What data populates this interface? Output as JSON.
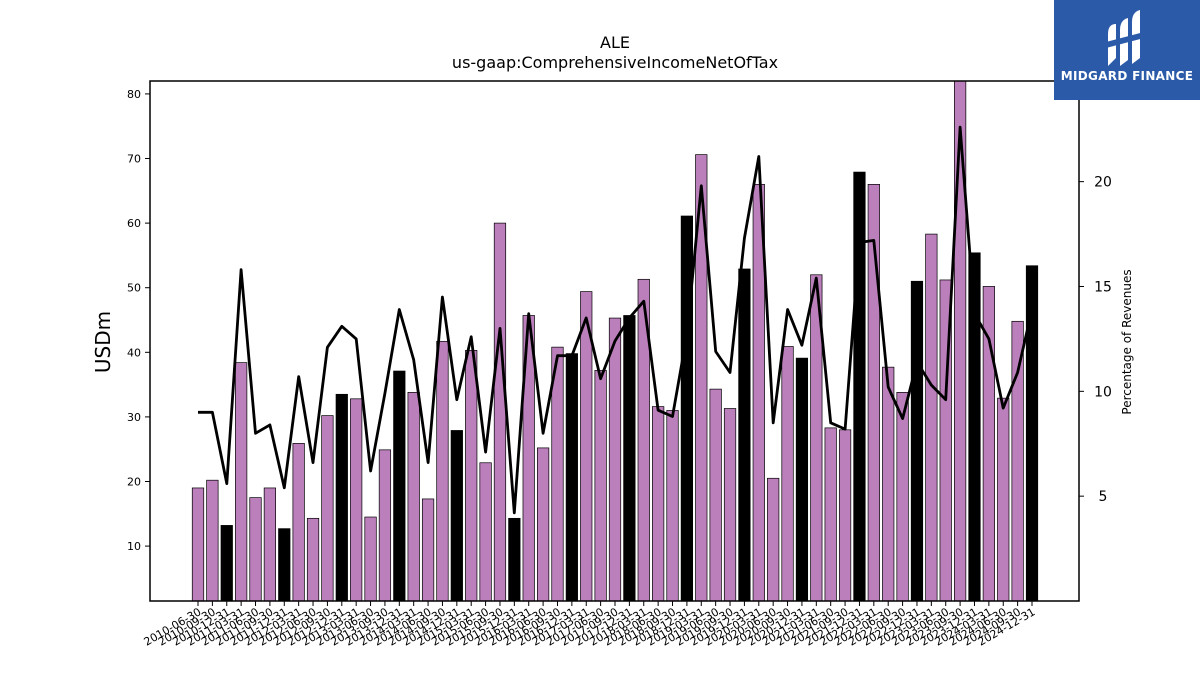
{
  "chart_data": {
    "type": "bar",
    "title": "ALE",
    "subtitle": "us-gaap:ComprehensiveIncomeNetOfTax",
    "ylabel": "USDm",
    "ylabel_right": "Percentage of Revenues",
    "ylim": [
      1.5,
      82
    ],
    "y2lim": [
      0,
      24.8
    ],
    "yticks": [
      10,
      20,
      30,
      40,
      50,
      60,
      70,
      80
    ],
    "y2ticks": [
      5,
      10,
      15,
      20
    ],
    "categories": [
      "2010-06-30",
      "2010-09-30",
      "2010-12-31",
      "2011-03-31",
      "2011-06-30",
      "2011-09-30",
      "2011-12-31",
      "2012-03-31",
      "2012-06-30",
      "2012-09-30",
      "2012-12-31",
      "2013-03-31",
      "2013-06-30",
      "2013-09-30",
      "2013-12-31",
      "2014-03-31",
      "2014-06-30",
      "2014-09-30",
      "2014-12-31",
      "2015-03-31",
      "2015-06-30",
      "2015-09-30",
      "2015-12-31",
      "2016-03-31",
      "2016-06-30",
      "2016-09-30",
      "2016-12-31",
      "2017-03-31",
      "2017-06-30",
      "2017-09-30",
      "2017-12-31",
      "2018-03-31",
      "2018-06-30",
      "2018-09-30",
      "2018-12-31",
      "2019-03-31",
      "2019-06-30",
      "2019-09-30",
      "2019-12-31",
      "2020-03-31",
      "2020-06-30",
      "2020-09-30",
      "2020-12-31",
      "2021-03-31",
      "2021-06-30",
      "2021-09-30",
      "2021-12-31",
      "2022-03-31",
      "2022-06-30",
      "2022-09-30",
      "2022-12-31",
      "2023-03-31",
      "2023-06-30",
      "2023-09-30",
      "2023-12-31",
      "2024-03-31",
      "2024-06-30",
      "2024-09-30",
      "2024-12-31"
    ],
    "tick_labels_shown": [
      "2010-06-30",
      "2010-09-30",
      "2010-12-31",
      "2011-03-31",
      "2011-06-30",
      "2011-09-30",
      "2011-12-31",
      "2012-03-31",
      "2012-06-30",
      "2012-09-30",
      "2012-12-31",
      "2013-03-31",
      "2013-06-30",
      "2013-09-30",
      "2013-12-31",
      "2014-03-31",
      "2014-06-30",
      "2014-09-30",
      "2014-12-31",
      "2015-03-31",
      "2015-06-30",
      "2015-09-30",
      "2015-12-31",
      "2016-03-31",
      "2016-06-30",
      "2016-09-30",
      "2016-12-31",
      "2017-03-31",
      "2017-06-30",
      "2017-09-30",
      "2017-12-31",
      "2018-03-31",
      "2018-06-30",
      "2018-09-30",
      "2018-12-31",
      "2019-03-31",
      "2019-06-30",
      "2019-09-30",
      "2019-12-31",
      "2020-03-31",
      "2020-06-30",
      "2020-09-30",
      "2020-12-31",
      "2021-03-31",
      "2021-06-30",
      "2021-09-30",
      "2021-12-31",
      "2022-03-31",
      "2022-06-30",
      "2022-09-30",
      "2022-12-31",
      "2023-03-31",
      "2023-06-30",
      "2023-09-30",
      "2023-12-31",
      "2024-03-31",
      "2024-06-30",
      "2024-09-30",
      "2024-12-31"
    ],
    "series": [
      {
        "type": "bar",
        "values": [
          19.0,
          20.2,
          13.2,
          38.4,
          17.5,
          19.0,
          12.7,
          25.9,
          14.3,
          30.2,
          33.5,
          32.8,
          14.5,
          24.9,
          37.1,
          33.8,
          17.3,
          41.7,
          27.9,
          40.3,
          22.9,
          60.0,
          14.3,
          45.7,
          25.2,
          40.8,
          39.8,
          49.4,
          37.2,
          45.3,
          45.7,
          51.3,
          31.6,
          31.0,
          61.1,
          70.6,
          34.3,
          31.3,
          52.9,
          66.0,
          20.5,
          40.9,
          39.1,
          52.0,
          28.3,
          28.0,
          67.9,
          66.0,
          37.7,
          33.8,
          51.0,
          58.3,
          51.2,
          82.5,
          55.4,
          50.2,
          32.9,
          44.8,
          53.4
        ],
        "colors": [
          "purple",
          "purple",
          "black",
          "purple",
          "purple",
          "purple",
          "black",
          "purple",
          "purple",
          "purple",
          "black",
          "purple",
          "purple",
          "purple",
          "black",
          "purple",
          "purple",
          "purple",
          "black",
          "purple",
          "purple",
          "purple",
          "black",
          "purple",
          "purple",
          "purple",
          "black",
          "purple",
          "purple",
          "purple",
          "black",
          "purple",
          "purple",
          "purple",
          "black",
          "purple",
          "purple",
          "purple",
          "black",
          "purple",
          "purple",
          "purple",
          "black",
          "purple",
          "purple",
          "purple",
          "black",
          "purple",
          "purple",
          "purple",
          "black",
          "purple",
          "purple",
          "purple",
          "black",
          "purple",
          "purple",
          "purple",
          "black"
        ]
      },
      {
        "type": "line",
        "axis": "right",
        "values": [
          9.0,
          9.0,
          5.6,
          15.8,
          8.0,
          8.4,
          5.4,
          10.7,
          6.6,
          12.1,
          13.1,
          12.5,
          6.2,
          9.9,
          13.9,
          11.5,
          6.6,
          14.5,
          9.6,
          12.6,
          7.1,
          13.0,
          4.2,
          13.7,
          8.0,
          11.7,
          11.7,
          13.5,
          10.6,
          12.4,
          13.5,
          14.3,
          9.1,
          8.8,
          12.7,
          19.8,
          11.9,
          10.9,
          17.3,
          21.2,
          8.5,
          13.9,
          12.2,
          15.4,
          8.5,
          8.2,
          17.1,
          17.2,
          10.2,
          8.7,
          11.4,
          10.3,
          9.6,
          22.6,
          13.7,
          12.5,
          9.2,
          10.9,
          13.9
        ]
      }
    ],
    "grid": false
  },
  "colors": {
    "purple_bar": "#bb7fbb",
    "black_bar": "#000000",
    "line": "#000000",
    "brand": "#2b5aa9"
  },
  "logo": {
    "text": "MIDGARD FINANCE"
  }
}
